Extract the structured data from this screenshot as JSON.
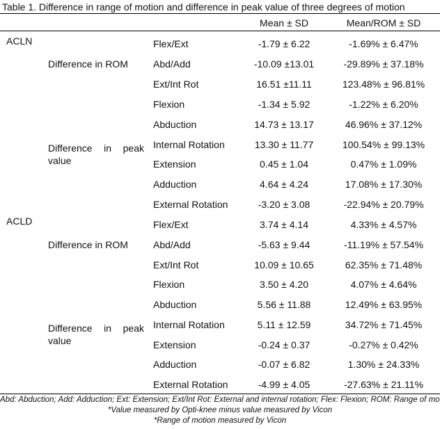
{
  "caption": "Table 1. Difference in range of motion and difference in peak value of three degrees of motion",
  "header": {
    "mean_sd": "Mean ± SD",
    "mean_rom_sd": "Mean/ROM ± SD"
  },
  "groups": [
    {
      "label": "ACLN",
      "subgroups": [
        {
          "label": "Difference in ROM",
          "rows": [
            {
              "measure": "Flex/Ext",
              "mean_sd": "-1.79 ± 6.22",
              "mean_rom_sd": "-1.69% ± 6.47%"
            },
            {
              "measure": "Abd/Add",
              "mean_sd": "-10.09 ±13.01",
              "mean_rom_sd": "-29.89% ± 37.18%"
            },
            {
              "measure": "Ext/Int Rot",
              "mean_sd": "16.51 ±11.11",
              "mean_rom_sd": "123.48% ± 96.81%"
            }
          ]
        },
        {
          "label_words": [
            "Difference",
            "in",
            "peak"
          ],
          "label_line2": "value",
          "rows": [
            {
              "measure": "Flexion",
              "mean_sd": "-1.34 ± 5.92",
              "mean_rom_sd": "-1.22% ± 6.20%"
            },
            {
              "measure": "Abduction",
              "mean_sd": "14.73 ± 13.17",
              "mean_rom_sd": "46.96% ± 37.12%"
            },
            {
              "measure": "Internal Rotation",
              "mean_sd": "13.30 ± 11.77",
              "mean_rom_sd": "100.54% ± 99.13%"
            },
            {
              "measure": "Extension",
              "mean_sd": "0.45 ± 1.04",
              "mean_rom_sd": "0.47% ± 1.09%"
            },
            {
              "measure": "Adduction",
              "mean_sd": "4.64 ± 4.24",
              "mean_rom_sd": "17.08% ± 17.30%"
            },
            {
              "measure": "External Rotation",
              "mean_sd": "-3.20 ± 3.08",
              "mean_rom_sd": "-22.94% ± 20.79%"
            }
          ]
        }
      ]
    },
    {
      "label": "ACLD",
      "subgroups": [
        {
          "label": "Difference in ROM",
          "rows": [
            {
              "measure": "Flex/Ext",
              "mean_sd": "3.74 ± 4.14",
              "mean_rom_sd": "4.33% ± 4.57%"
            },
            {
              "measure": "Abd/Add",
              "mean_sd": "-5.63 ± 9.44",
              "mean_rom_sd": "-11.19% ± 57.54%"
            },
            {
              "measure": "Ext/Int Rot",
              "mean_sd": "10.09 ± 10.65",
              "mean_rom_sd": "62.35% ± 71.48%"
            }
          ]
        },
        {
          "label_words": [
            "Difference",
            "in",
            "peak"
          ],
          "label_line2": "value",
          "rows": [
            {
              "measure": "Flexion",
              "mean_sd": "3.50 ± 4.20",
              "mean_rom_sd": "4.07% ± 4.64%"
            },
            {
              "measure": "Abduction",
              "mean_sd": "5.56 ± 11.88",
              "mean_rom_sd": "12.49% ± 63.95%"
            },
            {
              "measure": "Internal Rotation",
              "mean_sd": "5.11 ± 12.59",
              "mean_rom_sd": "34.72% ± 71.45%"
            },
            {
              "measure": "Extension",
              "mean_sd": "-0.24 ± 0.37",
              "mean_rom_sd": "-0.27% ± 0.42%"
            },
            {
              "measure": "Adduction",
              "mean_sd": "-0.07 ± 6.82",
              "mean_rom_sd": "1.30% ± 24.33%"
            },
            {
              "measure": "External Rotation",
              "mean_sd": "-4.99 ± 4.05",
              "mean_rom_sd": "-27.63% ± 21.11%"
            }
          ]
        }
      ]
    }
  ],
  "footnotes": [
    "Abd: Abduction; Add: Adduction; Ext: Extension; Ext/Int Rot: External and internal rotation; Flex: Flexion; ROM: Range of motion",
    "*Value measured by Opti-knee minus value measured by Vicon",
    "*Range of motion measured by Vicon"
  ]
}
